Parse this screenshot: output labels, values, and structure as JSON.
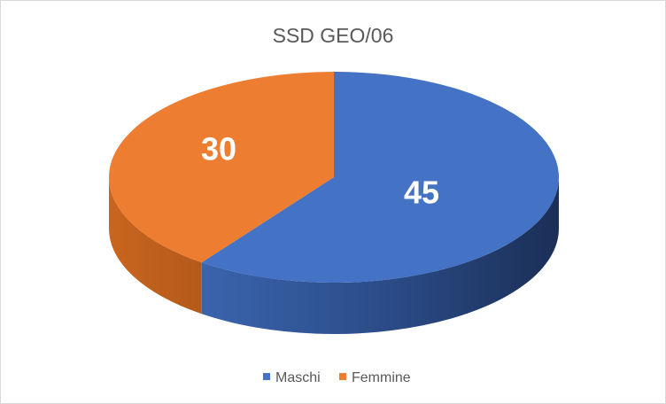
{
  "chart_data": {
    "type": "pie",
    "title": "SSD GEO/06",
    "categories": [
      "Maschi",
      "Femmine"
    ],
    "values": [
      45,
      30
    ],
    "colors": [
      "#4472c4",
      "#ed7d31"
    ],
    "data_labels": [
      "45",
      "30"
    ],
    "legend": {
      "position": "bottom",
      "entries": [
        "Maschi",
        "Femmine"
      ]
    },
    "style": "3d"
  }
}
